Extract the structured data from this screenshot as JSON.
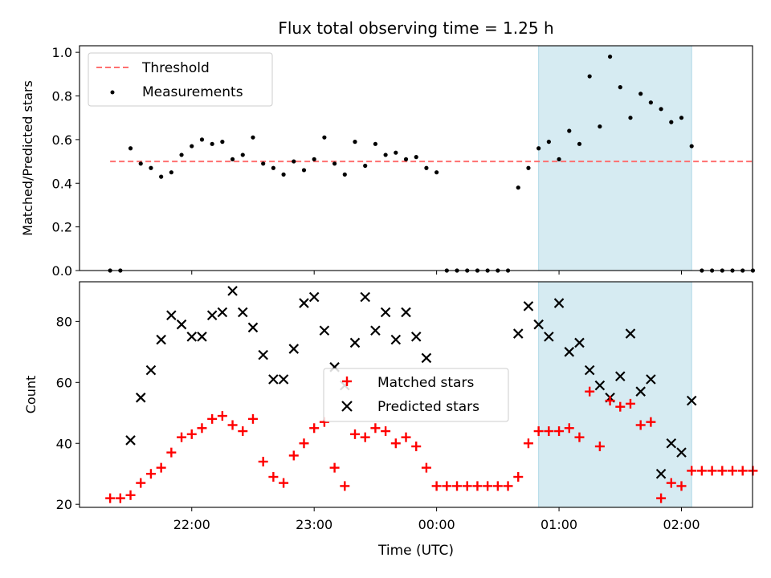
{
  "chart_data": [
    {
      "type": "scatter",
      "title": "Flux total observing time = 1.25 h",
      "xlabel": "",
      "ylabel": "Matched/Predicted stars",
      "ylim": [
        0,
        1.03
      ],
      "yticks": [
        "0.0",
        "0.2",
        "0.4",
        "0.6",
        "0.8",
        "1.0"
      ],
      "shaded_region": {
        "x_start": "00:50",
        "x_end": "02:05",
        "color": "#add8e6"
      },
      "legend": {
        "position": "top-left",
        "entries": [
          "Threshold",
          "Measurements"
        ]
      },
      "series": [
        {
          "name": "Threshold",
          "style": "dashed-line",
          "color": "#ff7070",
          "x": [
            "21:20",
            "02:35"
          ],
          "y": [
            0.5,
            0.5
          ]
        },
        {
          "name": "Measurements",
          "style": "dot",
          "color": "#000000",
          "x": [
            "21:20",
            "21:25",
            "21:30",
            "21:35",
            "21:40",
            "21:45",
            "21:50",
            "21:55",
            "22:00",
            "22:05",
            "22:10",
            "22:15",
            "22:20",
            "22:25",
            "22:30",
            "22:35",
            "22:40",
            "22:45",
            "22:50",
            "22:55",
            "23:00",
            "23:05",
            "23:10",
            "23:15",
            "23:20",
            "23:25",
            "23:30",
            "23:35",
            "23:40",
            "23:45",
            "23:50",
            "23:55",
            "00:00",
            "00:05",
            "00:10",
            "00:15",
            "00:20",
            "00:25",
            "00:30",
            "00:35",
            "00:40",
            "00:45",
            "00:50",
            "00:55",
            "01:00",
            "01:05",
            "01:10",
            "01:15",
            "01:20",
            "01:25",
            "01:30",
            "01:35",
            "01:40",
            "01:45",
            "01:50",
            "01:55",
            "02:00",
            "02:05",
            "02:10",
            "02:15",
            "02:20",
            "02:25",
            "02:30",
            "02:35"
          ],
          "y": [
            0.0,
            0.0,
            0.56,
            0.49,
            0.47,
            0.43,
            0.45,
            0.53,
            0.57,
            0.6,
            0.58,
            0.59,
            0.51,
            0.53,
            0.61,
            0.49,
            0.47,
            0.44,
            0.5,
            0.46,
            0.51,
            0.61,
            0.49,
            0.44,
            0.59,
            0.48,
            0.58,
            0.53,
            0.54,
            0.51,
            0.52,
            0.47,
            0.45,
            0.0,
            0.0,
            0.0,
            0.0,
            0.0,
            0.0,
            0.0,
            0.38,
            0.47,
            0.56,
            0.59,
            0.51,
            0.64,
            0.58,
            0.89,
            0.66,
            0.98,
            0.84,
            0.7,
            0.81,
            0.77,
            0.74,
            0.68,
            0.7,
            0.57,
            0.0,
            0.0,
            0.0,
            0.0,
            0.0,
            0.0
          ]
        }
      ]
    },
    {
      "type": "scatter",
      "title": "",
      "xlabel": "Time (UTC)",
      "ylabel": "Count",
      "ylim": [
        19,
        93
      ],
      "yticks": [
        "20",
        "40",
        "60",
        "80"
      ],
      "xticks": [
        "22:00",
        "23:00",
        "00:00",
        "01:00",
        "02:00"
      ],
      "shaded_region": {
        "x_start": "00:50",
        "x_end": "02:05",
        "color": "#add8e6"
      },
      "legend": {
        "position": "center",
        "entries": [
          "Matched stars",
          "Predicted stars"
        ]
      },
      "series": [
        {
          "name": "Matched stars",
          "marker": "plus",
          "color": "#ff0000",
          "x": [
            "21:20",
            "21:25",
            "21:30",
            "21:35",
            "21:40",
            "21:45",
            "21:50",
            "21:55",
            "22:00",
            "22:05",
            "22:10",
            "22:15",
            "22:20",
            "22:25",
            "22:30",
            "22:35",
            "22:40",
            "22:45",
            "22:50",
            "22:55",
            "23:00",
            "23:05",
            "23:10",
            "23:15",
            "23:20",
            "23:25",
            "23:30",
            "23:35",
            "23:40",
            "23:45",
            "23:50",
            "23:55",
            "00:00",
            "00:05",
            "00:10",
            "00:15",
            "00:20",
            "00:25",
            "00:30",
            "00:35",
            "00:40",
            "00:45",
            "00:50",
            "00:55",
            "01:00",
            "01:05",
            "01:10",
            "01:15",
            "01:20",
            "01:25",
            "01:30",
            "01:35",
            "01:40",
            "01:45",
            "01:50",
            "01:55",
            "02:00",
            "02:05",
            "02:10",
            "02:15",
            "02:20",
            "02:25",
            "02:30",
            "02:35"
          ],
          "y": [
            22,
            22,
            23,
            27,
            30,
            32,
            37,
            42,
            43,
            45,
            48,
            49,
            46,
            44,
            48,
            34,
            29,
            27,
            36,
            40,
            45,
            47,
            32,
            26,
            43,
            42,
            45,
            44,
            40,
            42,
            39,
            32,
            26,
            26,
            26,
            26,
            26,
            26,
            26,
            26,
            29,
            40,
            44,
            44,
            44,
            45,
            42,
            57,
            39,
            54,
            52,
            53,
            46,
            47,
            22,
            27,
            26,
            31,
            31,
            31,
            31,
            31,
            31,
            31
          ]
        },
        {
          "name": "Predicted stars",
          "marker": "x",
          "color": "#000000",
          "x": [
            "21:30",
            "21:35",
            "21:40",
            "21:45",
            "21:50",
            "21:55",
            "22:00",
            "22:05",
            "22:10",
            "22:15",
            "22:20",
            "22:25",
            "22:30",
            "22:35",
            "22:40",
            "22:45",
            "22:50",
            "22:55",
            "23:00",
            "23:05",
            "23:10",
            "23:15",
            "23:20",
            "23:25",
            "23:30",
            "23:35",
            "23:40",
            "23:45",
            "23:50",
            "23:55",
            "00:40",
            "00:45",
            "00:50",
            "00:55",
            "01:00",
            "01:05",
            "01:10",
            "01:15",
            "01:20",
            "01:25",
            "01:30",
            "01:35",
            "01:40",
            "01:45",
            "01:50",
            "01:55",
            "02:00",
            "02:05"
          ],
          "y": [
            41,
            55,
            64,
            74,
            82,
            79,
            75,
            75,
            82,
            83,
            90,
            83,
            78,
            69,
            61,
            61,
            71,
            86,
            88,
            77,
            65,
            59,
            73,
            88,
            77,
            83,
            74,
            83,
            75,
            68,
            76,
            85,
            79,
            75,
            86,
            70,
            73,
            64,
            59,
            55,
            62,
            76,
            57,
            61,
            30,
            40,
            37,
            54
          ]
        }
      ]
    }
  ]
}
